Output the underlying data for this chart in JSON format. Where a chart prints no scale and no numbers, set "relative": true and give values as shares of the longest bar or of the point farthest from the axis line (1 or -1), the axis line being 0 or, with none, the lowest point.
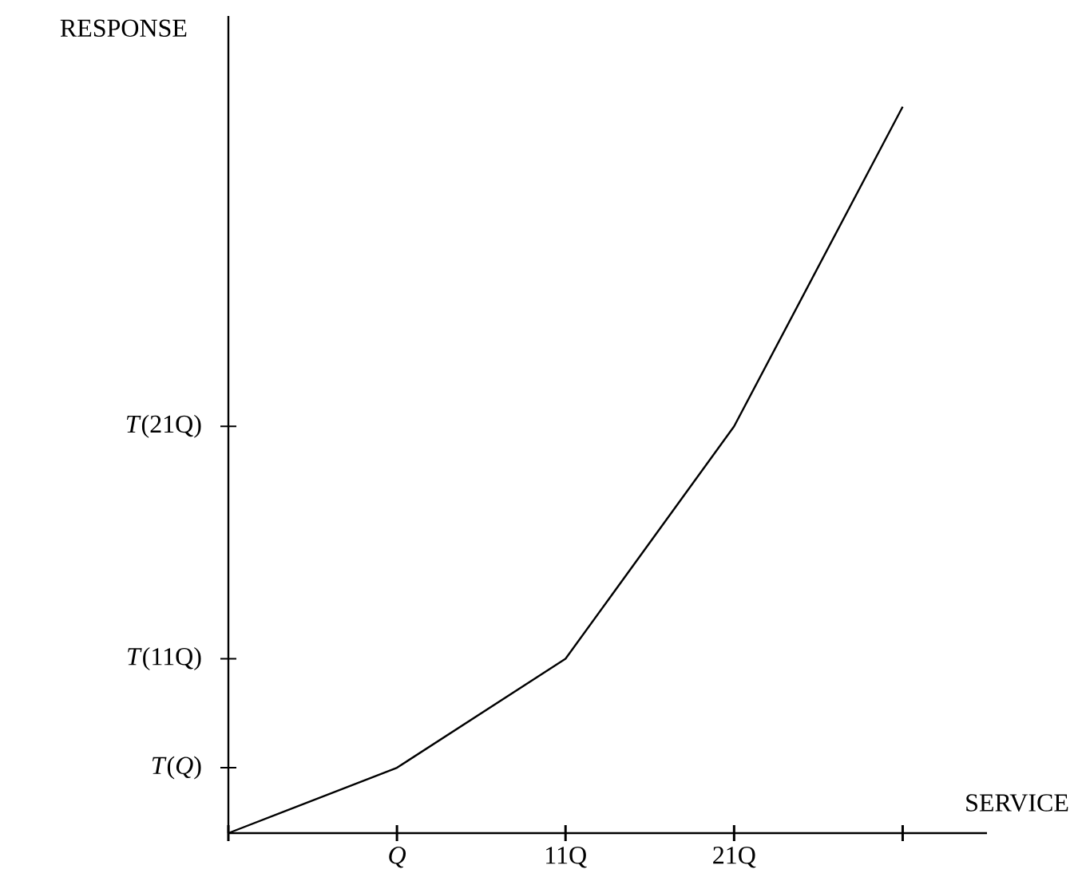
{
  "chart_data": {
    "type": "line",
    "xlabel": "SERVICE",
    "ylabel": "RESPONSE",
    "relative": true,
    "categories": [
      null,
      "*Q*",
      "11Q",
      "21Q",
      null
    ],
    "values": [
      0,
      0.09,
      0.24,
      0.56,
      1
    ],
    "color": "#000000",
    "line_style": "solid",
    "annotations": [
      "*T*(*Q*)",
      "*T*(11Q)",
      "*T*(21Q)"
    ]
  }
}
